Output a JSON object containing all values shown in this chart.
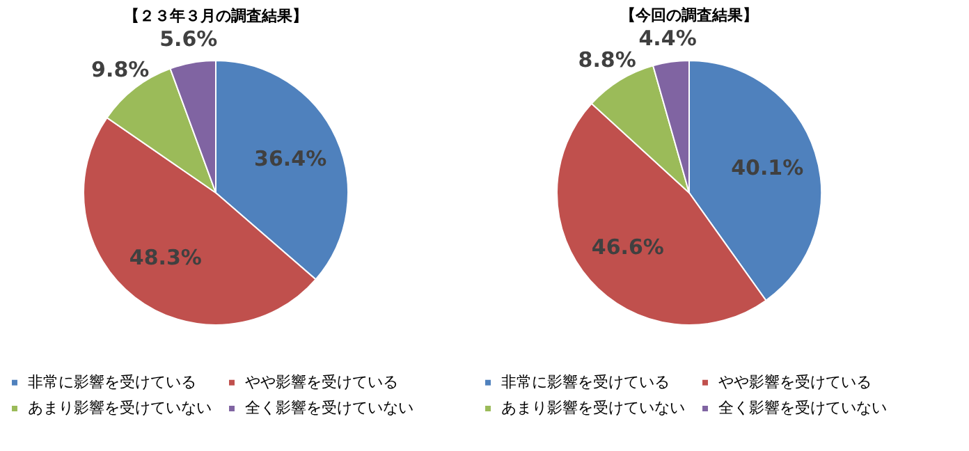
{
  "chart_data": [
    {
      "type": "pie",
      "title": "【２３年３月の調査結果】",
      "categories": [
        "非常に影響を受けている",
        "やや影響を受けている",
        "あまり影響を受けていない",
        "全く影響を受けていない"
      ],
      "values": [
        36.4,
        48.3,
        9.8,
        5.6
      ],
      "value_labels": [
        "36.4%",
        "48.3%",
        "9.8%",
        "5.6%"
      ],
      "colors": [
        "#4f81bd",
        "#c0504d",
        "#9bbb59",
        "#8064a2"
      ],
      "legend": "bottom"
    },
    {
      "type": "pie",
      "title": "【今回の調査結果】",
      "categories": [
        "非常に影響を受けている",
        "やや影響を受けている",
        "あまり影響を受けていない",
        "全く影響を受けていない"
      ],
      "values": [
        40.1,
        46.6,
        8.8,
        4.4
      ],
      "value_labels": [
        "40.1%",
        "46.6%",
        "8.8%",
        "4.4%"
      ],
      "colors": [
        "#4f81bd",
        "#c0504d",
        "#9bbb59",
        "#8064a2"
      ],
      "legend": "bottom"
    }
  ]
}
